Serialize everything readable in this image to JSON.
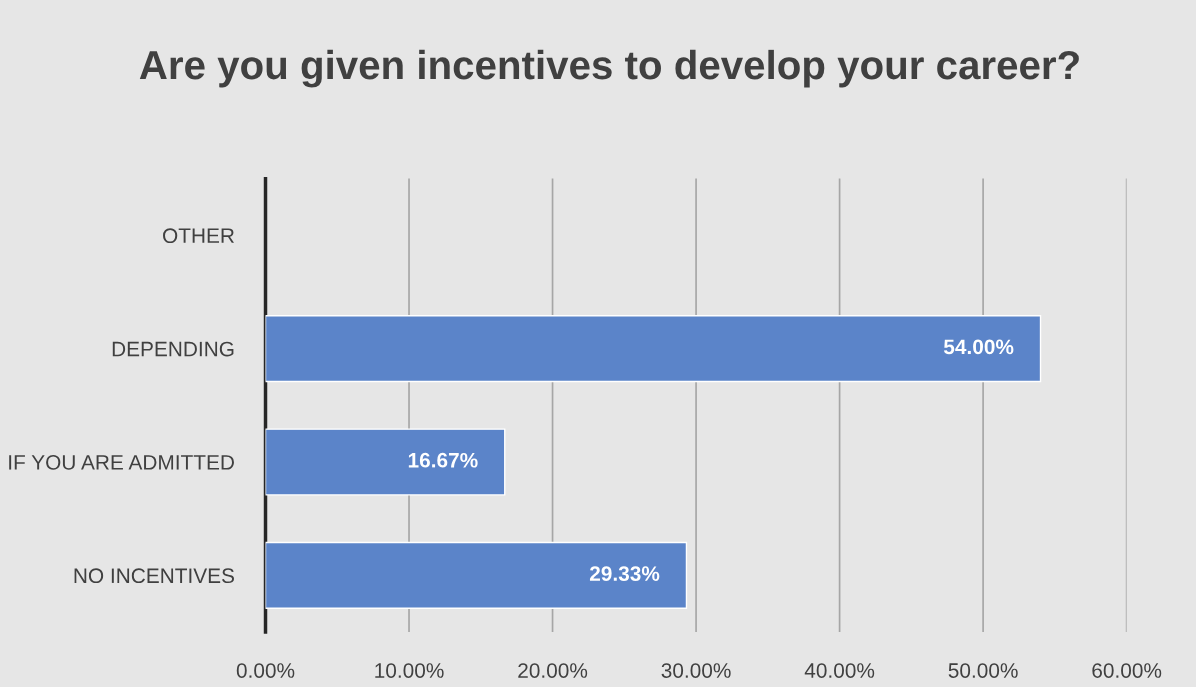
{
  "chart_data": {
    "type": "bar",
    "orientation": "horizontal",
    "title": "Are you given incentives to develop your career?",
    "categories": [
      "OTHER",
      "DEPENDING",
      "IF YOU ARE ADMITTED",
      "NO INCENTIVES"
    ],
    "values": [
      null,
      54.0,
      16.67,
      29.33
    ],
    "value_labels": [
      null,
      "54.00%",
      "16.67%",
      "29.33%"
    ],
    "color": "#5b84c9",
    "xlim": [
      0,
      60
    ],
    "xticks": [
      {
        "value": 0,
        "label": "0.00%"
      },
      {
        "value": 10,
        "label": "10.00%"
      },
      {
        "value": 20,
        "label": "20.00%"
      },
      {
        "value": 30,
        "label": "30.00%"
      },
      {
        "value": 40,
        "label": "40.00%"
      },
      {
        "value": 50,
        "label": "50.00%"
      },
      {
        "value": 60,
        "label": "60.00%"
      }
    ],
    "grid": "x",
    "legend": false
  }
}
